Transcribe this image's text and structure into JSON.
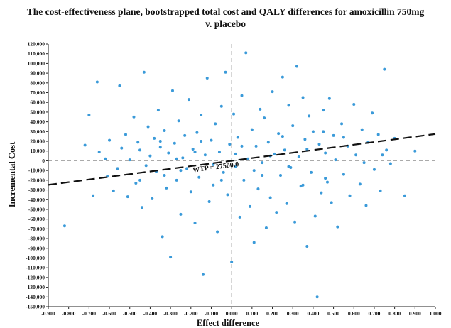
{
  "chart_data": {
    "type": "scatter",
    "title": "The cost-effectiveness plane, bootstrapped total cost and QALY differences for amoxicillin 750mg v. placebo",
    "title_lines": [
      "The cost-effectiveness plane, bootstrapped total cost and QALY differences for amoxicillin 750mg",
      "v. placebo"
    ],
    "xlabel": "Effect difference",
    "ylabel": "Incremental Cost",
    "xlim": [
      -0.9,
      1.0
    ],
    "ylim": [
      -150000,
      120000
    ],
    "x_ticks": [
      -0.9,
      -0.8,
      -0.7,
      -0.6,
      -0.5,
      -0.4,
      -0.3,
      -0.2,
      -0.1,
      0.0,
      0.1,
      0.2,
      0.3,
      0.4,
      0.5,
      0.6,
      0.7,
      0.8,
      0.9,
      1.0
    ],
    "x_tick_labels": [
      "-0.900",
      "-0.800",
      "-0.700",
      "-0.600",
      "-0.500",
      "-0.400",
      "-0.300",
      "-0.200",
      "-0.100",
      "0.000",
      "0.100",
      "0.200",
      "0.300",
      "0.400",
      "0.500",
      "0.600",
      "0.700",
      "0.800",
      "0.900",
      "1.000"
    ],
    "y_ticks": [
      120000,
      110000,
      100000,
      90000,
      80000,
      70000,
      60000,
      50000,
      40000,
      30000,
      20000,
      10000,
      0,
      -10000,
      -20000,
      -30000,
      -40000,
      -50000,
      -60000,
      -70000,
      -80000,
      -90000,
      -100000,
      -110000,
      -120000,
      -130000,
      -140000,
      -150000
    ],
    "y_tick_labels": [
      "120,000",
      "110,000",
      "100,000",
      "90,000",
      "80,000",
      "70,000",
      "60,000",
      "50,000",
      "40,000",
      "30,000",
      "20,000",
      "10,000",
      "0",
      "-10,000",
      "-20,000",
      "-30,000",
      "-40,000",
      "-50,000",
      "-60,000",
      "-70,000",
      "-80,000",
      "-90,000",
      "-100,000",
      "-110,000",
      "-120,000",
      "-130,000",
      "-140,000",
      "-150,000"
    ],
    "grid": false,
    "legend": "none",
    "point_color": "#3a9ad9",
    "wtp_line": {
      "label": "WTP = 27500.0",
      "slope": 27500,
      "intercept": 0,
      "color": "#111111",
      "style": "dashed"
    },
    "reference_lines": {
      "x": 0.0,
      "y": 0.0,
      "color": "#aaaaaa",
      "style": "dashed"
    },
    "series": [
      {
        "values": [
          [
            -0.82,
            -67000
          ],
          [
            -0.72,
            16000
          ],
          [
            -0.7,
            47000
          ],
          [
            -0.68,
            -36000
          ],
          [
            -0.66,
            81000
          ],
          [
            -0.65,
            9000
          ],
          [
            -0.62,
            2000
          ],
          [
            -0.61,
            -16000
          ],
          [
            -0.6,
            21000
          ],
          [
            -0.58,
            -31000
          ],
          [
            -0.55,
            77000
          ],
          [
            -0.54,
            13000
          ],
          [
            -0.52,
            27000
          ],
          [
            -0.51,
            -37000
          ],
          [
            -0.5,
            1000
          ],
          [
            -0.48,
            45000
          ],
          [
            -0.47,
            -23000
          ],
          [
            -0.46,
            19000
          ],
          [
            -0.44,
            -48000
          ],
          [
            -0.43,
            91000
          ],
          [
            -0.42,
            -5000
          ],
          [
            -0.41,
            35000
          ],
          [
            -0.4,
            5000
          ],
          [
            -0.39,
            -39000
          ],
          [
            -0.38,
            23000
          ],
          [
            -0.37,
            -11000
          ],
          [
            -0.36,
            52000
          ],
          [
            -0.35,
            14000
          ],
          [
            -0.34,
            -78000
          ],
          [
            -0.33,
            31000
          ],
          [
            -0.32,
            -28000
          ],
          [
            -0.31,
            8000
          ],
          [
            -0.3,
            -99000
          ],
          [
            -0.29,
            72000
          ],
          [
            -0.28,
            18000
          ],
          [
            -0.27,
            -20000
          ],
          [
            -0.26,
            41000
          ],
          [
            -0.25,
            -55000
          ],
          [
            -0.24,
            3000
          ],
          [
            -0.23,
            26000
          ],
          [
            -0.22,
            -8000
          ],
          [
            -0.21,
            63000
          ],
          [
            -0.2,
            -32000
          ],
          [
            -0.19,
            12000
          ],
          [
            -0.18,
            -64000
          ],
          [
            -0.17,
            29000
          ],
          [
            -0.16,
            -17000
          ],
          [
            -0.15,
            47000
          ],
          [
            -0.14,
            -117000
          ],
          [
            -0.13,
            6000
          ],
          [
            -0.12,
            85000
          ],
          [
            -0.11,
            -42000
          ],
          [
            -0.1,
            21000
          ],
          [
            -0.09,
            -25000
          ],
          [
            -0.08,
            38000
          ],
          [
            -0.07,
            -73000
          ],
          [
            -0.06,
            9000
          ],
          [
            -0.05,
            56000
          ],
          [
            -0.04,
            -12000
          ],
          [
            -0.03,
            91000
          ],
          [
            -0.02,
            -35000
          ],
          [
            -0.01,
            17000
          ],
          [
            0.0,
            -104000
          ],
          [
            0.01,
            48000
          ],
          [
            0.02,
            -6000
          ],
          [
            0.03,
            24000
          ],
          [
            0.04,
            -58000
          ],
          [
            0.05,
            67000
          ],
          [
            0.06,
            -20000
          ],
          [
            0.07,
            111000
          ],
          [
            0.08,
            2000
          ],
          [
            0.09,
            -47000
          ],
          [
            0.1,
            32000
          ],
          [
            0.11,
            -84000
          ],
          [
            0.12,
            15000
          ],
          [
            0.13,
            -29000
          ],
          [
            0.14,
            53000
          ],
          [
            0.15,
            -2000
          ],
          [
            0.16,
            44000
          ],
          [
            0.17,
            -69000
          ],
          [
            0.18,
            19000
          ],
          [
            0.19,
            -38000
          ],
          [
            0.2,
            71000
          ],
          [
            0.21,
            7000
          ],
          [
            0.22,
            -53000
          ],
          [
            0.23,
            28000
          ],
          [
            0.24,
            -15000
          ],
          [
            0.25,
            86000
          ],
          [
            0.26,
            11000
          ],
          [
            0.27,
            -44000
          ],
          [
            0.28,
            57000
          ],
          [
            0.29,
            -7000
          ],
          [
            0.3,
            36000
          ],
          [
            0.31,
            -63000
          ],
          [
            0.32,
            97000
          ],
          [
            0.33,
            4000
          ],
          [
            0.34,
            -26000
          ],
          [
            0.35,
            65000
          ],
          [
            0.36,
            22000
          ],
          [
            0.37,
            -88000
          ],
          [
            0.38,
            46000
          ],
          [
            0.39,
            -12000
          ],
          [
            0.4,
            30000
          ],
          [
            0.41,
            -57000
          ],
          [
            0.42,
            -140000
          ],
          [
            0.43,
            17000
          ],
          [
            0.44,
            -33000
          ],
          [
            0.45,
            52000
          ],
          [
            0.46,
            8000
          ],
          [
            0.47,
            -22000
          ],
          [
            0.48,
            64000
          ],
          [
            0.49,
            -43000
          ],
          [
            0.5,
            26000
          ],
          [
            0.51,
            1000
          ],
          [
            0.52,
            -68000
          ],
          [
            0.54,
            38000
          ],
          [
            0.55,
            -14000
          ],
          [
            0.57,
            15000
          ],
          [
            0.58,
            -36000
          ],
          [
            0.6,
            58000
          ],
          [
            0.61,
            6000
          ],
          [
            0.63,
            -24000
          ],
          [
            0.64,
            32000
          ],
          [
            0.66,
            -46000
          ],
          [
            0.67,
            19000
          ],
          [
            0.69,
            49000
          ],
          [
            0.7,
            -9000
          ],
          [
            0.72,
            27000
          ],
          [
            0.73,
            -31000
          ],
          [
            0.75,
            94000
          ],
          [
            0.76,
            11000
          ],
          [
            0.78,
            -3000
          ],
          [
            0.8,
            23000
          ],
          [
            0.85,
            -36000
          ],
          [
            0.9,
            10000
          ],
          [
            -0.56,
            -8000
          ],
          [
            -0.45,
            11000
          ],
          [
            -0.33,
            -15000
          ],
          [
            -0.27,
            2000
          ],
          [
            -0.18,
            9000
          ],
          [
            -0.09,
            -4000
          ],
          [
            0.02,
            7000
          ],
          [
            0.11,
            -10000
          ],
          [
            0.19,
            5000
          ],
          [
            0.28,
            -6000
          ],
          [
            0.37,
            12000
          ],
          [
            0.46,
            -18000
          ],
          [
            0.55,
            24000
          ],
          [
            0.65,
            -2000
          ],
          [
            0.74,
            6000
          ],
          [
            -0.15,
            20000
          ],
          [
            -0.05,
            -20000
          ],
          [
            0.05,
            15000
          ],
          [
            0.15,
            -15000
          ],
          [
            0.25,
            25000
          ],
          [
            0.35,
            -25000
          ],
          [
            -0.25,
            -10000
          ],
          [
            -0.35,
            20000
          ],
          [
            0.45,
            30000
          ],
          [
            -0.45,
            -20000
          ]
        ]
      }
    ]
  }
}
